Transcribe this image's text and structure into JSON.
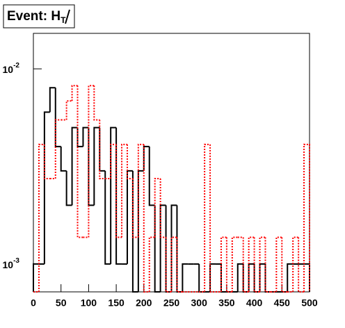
{
  "chart_data": {
    "type": "histogram",
    "title": "Event:",
    "title_symbol": "H",
    "title_subscript": "T",
    "log_y": true,
    "bins": [
      0,
      10,
      20,
      30,
      40,
      50,
      60,
      70,
      80,
      90,
      100,
      110,
      120,
      130,
      140,
      150,
      160,
      170,
      180,
      190,
      200,
      210,
      220,
      230,
      240,
      250,
      260,
      270,
      280,
      290,
      300,
      310,
      320,
      330,
      340,
      350,
      360,
      370,
      380,
      390,
      400,
      410,
      420,
      430,
      440,
      450,
      460,
      470,
      480,
      490,
      500
    ],
    "series": [
      {
        "name": "solid",
        "color": "#000000",
        "dash": false,
        "values": [
          0.001,
          0.001,
          0.006,
          0.008,
          0.004,
          0.003,
          0.002,
          0.005,
          0.004,
          0.005,
          0.002,
          0.005,
          0.003,
          0.001,
          0.005,
          0.001,
          0.001,
          0.003,
          0,
          0.003,
          0.004,
          0.002,
          0,
          0.002,
          0,
          0.002,
          0,
          0.001,
          0.001,
          0.001,
          0,
          0,
          0.001,
          0.001,
          0,
          0,
          0,
          0.001,
          0,
          0.001,
          0,
          0.001,
          0,
          0,
          0,
          0,
          0.001,
          0.001,
          0.001,
          0.001
        ]
      },
      {
        "name": "dotted",
        "color": "#ff0000",
        "dash": true,
        "values": [
          0,
          0.0041,
          0.00274,
          0.00274,
          0.00548,
          0.00548,
          0.00685,
          0.0082,
          0.00137,
          0.00137,
          0.0082,
          0.00548,
          0.00274,
          0.00274,
          0.0041,
          0.00137,
          0.0041,
          0.00274,
          0.00137,
          0.0041,
          0,
          0.00137,
          0.00274,
          0.00137,
          0,
          0.00137,
          0,
          0,
          0,
          0,
          0,
          0.0041,
          0,
          0,
          0.00137,
          0,
          0.00137,
          0.00137,
          0,
          0.00137,
          0,
          0.00137,
          0,
          0,
          0.00137,
          0,
          0,
          0.00137,
          0,
          0.0041
        ]
      }
    ],
    "xlim": [
      0,
      500
    ],
    "xticks": [
      0,
      50,
      100,
      150,
      200,
      250,
      300,
      350,
      400,
      450,
      500
    ],
    "ylim": [
      0.00072,
      0.0152
    ],
    "yticks": [
      {
        "value": 0.001,
        "label": "10",
        "exponent": "-3"
      },
      {
        "value": 0.01,
        "label": "10",
        "exponent": "-2"
      }
    ]
  }
}
